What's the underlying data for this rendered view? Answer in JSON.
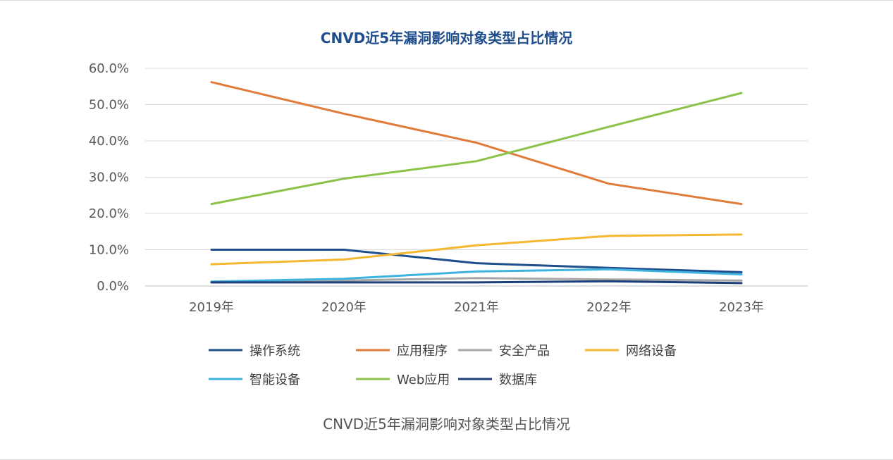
{
  "chart_data": {
    "type": "line",
    "title": "CNVD近5年漏洞影响对象类型占比情况",
    "caption": "CNVD近5年漏洞影响对象类型占比情况",
    "xlabel": "",
    "ylabel": "",
    "categories": [
      "2019年",
      "2020年",
      "2021年",
      "2022年",
      "2023年"
    ],
    "ylim": [
      0,
      60
    ],
    "yticks": [
      "0.0%",
      "10.0%",
      "20.0%",
      "30.0%",
      "40.0%",
      "50.0%",
      "60.0%"
    ],
    "grid": true,
    "legend_position": "bottom",
    "series": [
      {
        "name": "操作系统",
        "color": "#1f4e8c",
        "values": [
          10.0,
          10.0,
          6.3,
          5.0,
          3.8
        ]
      },
      {
        "name": "应用程序",
        "color": "#e07b39",
        "values": [
          56.2,
          47.5,
          39.5,
          28.2,
          22.6
        ]
      },
      {
        "name": "安全产品",
        "color": "#a6a6a6",
        "values": [
          1.0,
          1.5,
          2.2,
          1.8,
          1.5
        ]
      },
      {
        "name": "网络设备",
        "color": "#f4b730",
        "values": [
          6.0,
          7.3,
          11.2,
          13.8,
          14.2
        ]
      },
      {
        "name": "智能设备",
        "color": "#3fb3e0",
        "values": [
          1.2,
          2.0,
          4.0,
          4.6,
          3.2
        ]
      },
      {
        "name": "Web应用",
        "color": "#8cc24a",
        "values": [
          22.6,
          29.6,
          34.4,
          43.9,
          53.2
        ]
      },
      {
        "name": "数据库",
        "color": "#1a3f7a",
        "values": [
          1.0,
          1.0,
          1.0,
          1.3,
          0.8
        ]
      }
    ]
  }
}
